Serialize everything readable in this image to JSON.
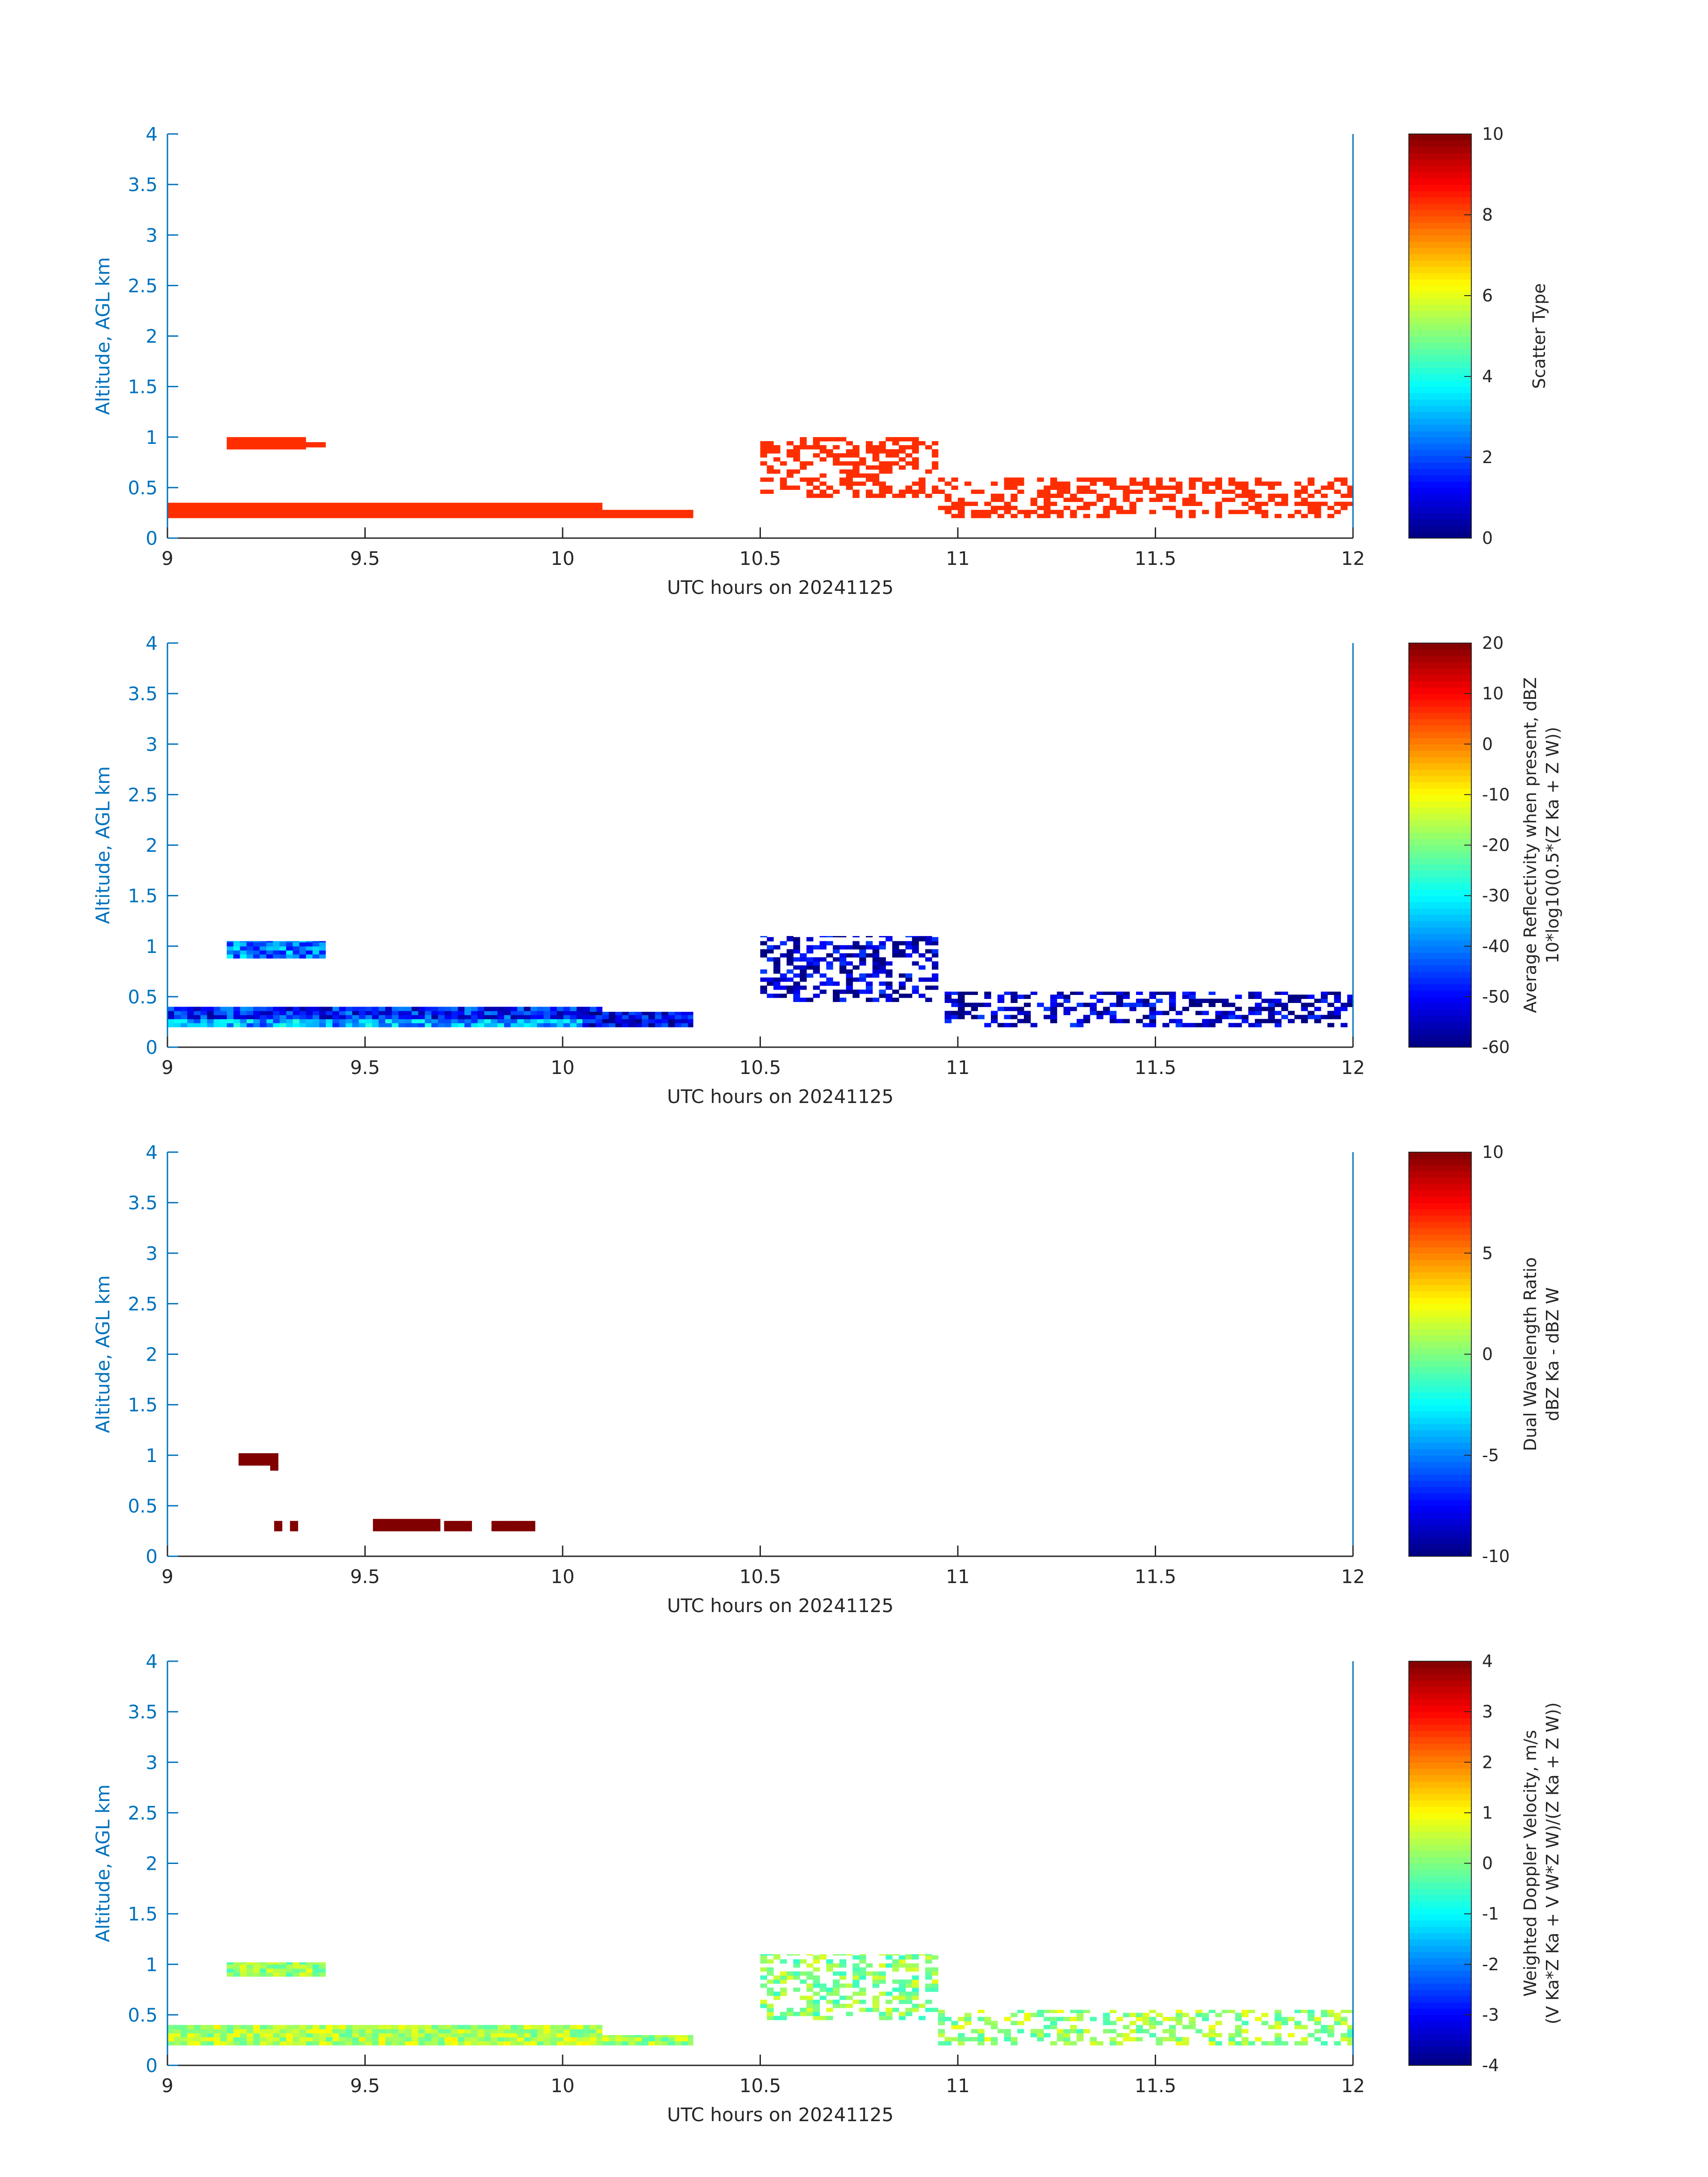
{
  "chart_data": [
    {
      "type": "heatmap",
      "title": "",
      "xlabel": "UTC hours on 20241125",
      "ylabel": "Altitude, AGL km",
      "xlim": [
        9,
        12
      ],
      "ylim": [
        0,
        4
      ],
      "xticks": [
        "9",
        "9.5",
        "10",
        "10.5",
        "11",
        "11.5",
        "12"
      ],
      "yticks": [
        "0",
        "0.5",
        "1",
        "1.5",
        "2",
        "2.5",
        "3",
        "3.5",
        "4"
      ],
      "colorbar": {
        "label": "Scatter Type",
        "label2": "",
        "range": [
          0,
          10
        ],
        "ticks": [
          "0",
          "2",
          "4",
          "6",
          "8",
          "10"
        ]
      },
      "regions": [
        {
          "x": [
            9.0,
            10.1
          ],
          "y": [
            0.2,
            0.35
          ],
          "value": 8.3
        },
        {
          "x": [
            9.15,
            9.35
          ],
          "y": [
            0.88,
            1.0
          ],
          "value": 8.3
        },
        {
          "x": [
            9.35,
            9.4
          ],
          "y": [
            0.9,
            0.95
          ],
          "value": 8.3
        },
        {
          "x": [
            10.1,
            10.33
          ],
          "y": [
            0.2,
            0.28
          ],
          "value": 8.3
        },
        {
          "x": [
            10.5,
            10.95
          ],
          "y": [
            0.4,
            1.0
          ],
          "value": 8.3
        },
        {
          "x": [
            10.95,
            12.0
          ],
          "y": [
            0.2,
            0.6
          ],
          "value": 8.3
        }
      ]
    },
    {
      "type": "heatmap",
      "title": "",
      "xlabel": "UTC hours on 20241125",
      "ylabel": "Altitude, AGL km",
      "xlim": [
        9,
        12
      ],
      "ylim": [
        0,
        4
      ],
      "xticks": [
        "9",
        "9.5",
        "10",
        "10.5",
        "11",
        "11.5",
        "12"
      ],
      "yticks": [
        "0",
        "0.5",
        "1",
        "1.5",
        "2",
        "2.5",
        "3",
        "3.5",
        "4"
      ],
      "colorbar": {
        "label": "Average Reflectivity when present, dBZ",
        "label2": "10*log10(0.5*(Z Ka + Z W))",
        "range": [
          -60,
          20
        ],
        "ticks": [
          "-60",
          "-50",
          "-40",
          "-30",
          "-20",
          "-10",
          "0",
          "10",
          "20"
        ]
      },
      "regions": [
        {
          "x": [
            9.0,
            10.1
          ],
          "y": [
            0.2,
            0.28
          ],
          "value": -37
        },
        {
          "x": [
            9.0,
            10.1
          ],
          "y": [
            0.28,
            0.4
          ],
          "value": -48
        },
        {
          "x": [
            9.15,
            9.4
          ],
          "y": [
            0.88,
            1.05
          ],
          "value": -40
        },
        {
          "x": [
            10.05,
            10.33
          ],
          "y": [
            0.2,
            0.35
          ],
          "value": -52
        },
        {
          "x": [
            10.5,
            10.95
          ],
          "y": [
            0.45,
            1.1
          ],
          "value": -55
        },
        {
          "x": [
            10.95,
            12.0
          ],
          "y": [
            0.2,
            0.55
          ],
          "value": -55
        }
      ]
    },
    {
      "type": "heatmap",
      "title": "",
      "xlabel": "UTC hours on 20241125",
      "ylabel": "Altitude, AGL km",
      "xlim": [
        9,
        12
      ],
      "ylim": [
        0,
        4
      ],
      "xticks": [
        "9",
        "9.5",
        "10",
        "10.5",
        "11",
        "11.5",
        "12"
      ],
      "yticks": [
        "0",
        "0.5",
        "1",
        "1.5",
        "2",
        "2.5",
        "3",
        "3.5",
        "4"
      ],
      "colorbar": {
        "label": "Dual Wavelength Ratio",
        "label2": "dBZ Ka - dBZ W",
        "range": [
          -10,
          10
        ],
        "ticks": [
          "-10",
          "-5",
          "0",
          "5",
          "10"
        ]
      },
      "regions": [
        {
          "x": [
            9.18,
            9.28
          ],
          "y": [
            0.9,
            1.02
          ],
          "value": 10
        },
        {
          "x": [
            9.26,
            9.28
          ],
          "y": [
            0.85,
            0.9
          ],
          "value": 10
        },
        {
          "x": [
            9.27,
            9.29
          ],
          "y": [
            0.25,
            0.35
          ],
          "value": 10
        },
        {
          "x": [
            9.31,
            9.33
          ],
          "y": [
            0.25,
            0.35
          ],
          "value": 10
        },
        {
          "x": [
            9.52,
            9.69
          ],
          "y": [
            0.25,
            0.37
          ],
          "value": 10
        },
        {
          "x": [
            9.7,
            9.77
          ],
          "y": [
            0.25,
            0.35
          ],
          "value": 10
        },
        {
          "x": [
            9.82,
            9.93
          ],
          "y": [
            0.25,
            0.35
          ],
          "value": 10
        }
      ]
    },
    {
      "type": "heatmap",
      "title": "",
      "xlabel": "UTC hours on 20241125",
      "ylabel": "Altitude, AGL km",
      "xlim": [
        9,
        12
      ],
      "ylim": [
        0,
        4
      ],
      "xticks": [
        "9",
        "9.5",
        "10",
        "10.5",
        "11",
        "11.5",
        "12"
      ],
      "yticks": [
        "0",
        "0.5",
        "1",
        "1.5",
        "2",
        "2.5",
        "3",
        "3.5",
        "4"
      ],
      "colorbar": {
        "label": "Weighted Doppler Velocity, m/s",
        "label2": "(V Ka*Z Ka + V W*Z W)/(Z Ka + Z W))",
        "range": [
          -4,
          4
        ],
        "ticks": [
          "-4",
          "-3",
          "-2",
          "-1",
          "0",
          "1",
          "2",
          "3",
          "4"
        ]
      },
      "regions": [
        {
          "x": [
            9.0,
            10.1
          ],
          "y": [
            0.2,
            0.4
          ],
          "value": 0.4
        },
        {
          "x": [
            9.15,
            9.4
          ],
          "y": [
            0.88,
            1.02
          ],
          "value": 0.2
        },
        {
          "x": [
            10.1,
            10.33
          ],
          "y": [
            0.2,
            0.3
          ],
          "value": 0.3
        },
        {
          "x": [
            10.5,
            10.95
          ],
          "y": [
            0.45,
            1.1
          ],
          "value": 0.1
        },
        {
          "x": [
            10.95,
            12.0
          ],
          "y": [
            0.2,
            0.55
          ],
          "value": 0.2
        }
      ]
    }
  ]
}
